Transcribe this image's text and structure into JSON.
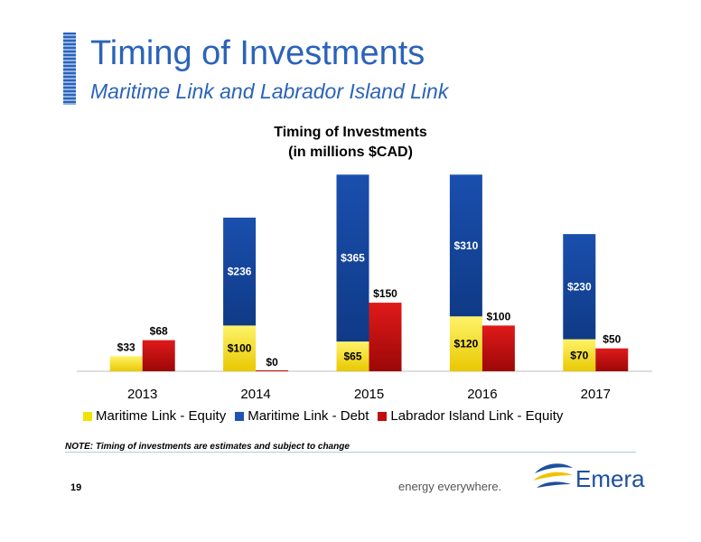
{
  "header": {
    "title": "Timing of Investments",
    "subtitle": "Maritime Link and Labrador Island Link"
  },
  "chart_data": {
    "type": "bar",
    "title_line1": "Timing of Investments",
    "title_line2": "(in millions $CAD)",
    "categories": [
      "2013",
      "2014",
      "2015",
      "2016",
      "2017"
    ],
    "ylim": [
      0,
      500
    ],
    "grid": false,
    "legend_position": "bottom",
    "stacks": [
      {
        "segments": [
          {
            "name": "Maritime Link - Equity",
            "color": "#f2e200",
            "values": [
              33,
              100,
              65,
              120,
              70
            ]
          },
          {
            "name": "Maritime Link - Debt",
            "color": "#1f55b0",
            "values": [
              0,
              236,
              365,
              310,
              230
            ]
          }
        ]
      },
      {
        "segments": [
          {
            "name": "Labrador Island Link - Equity",
            "color": "#c20d0d",
            "values": [
              68,
              0,
              150,
              100,
              50
            ]
          }
        ]
      }
    ],
    "data_labels": {
      "Maritime Link - Equity": [
        "$33",
        "$100",
        "$65",
        "$120",
        "$70"
      ],
      "Maritime Link - Debt": [
        "",
        "$236",
        "$365",
        "$310",
        "$230"
      ],
      "Labrador Island Link - Equity": [
        "$68",
        "$0",
        "$150",
        "$100",
        "$50"
      ]
    }
  },
  "legend": {
    "items": [
      {
        "label": "Maritime Link - Equity",
        "color": "#f2e200"
      },
      {
        "label": "Maritime Link - Debt",
        "color": "#1f55b0"
      },
      {
        "label": "Labrador Island Link - Equity",
        "color": "#c20d0d"
      }
    ]
  },
  "footer": {
    "note": "NOTE: Timing of investments are estimates and subject to change",
    "page_number": "19",
    "tagline": "energy everywhere.",
    "logo_text": "Emera"
  }
}
